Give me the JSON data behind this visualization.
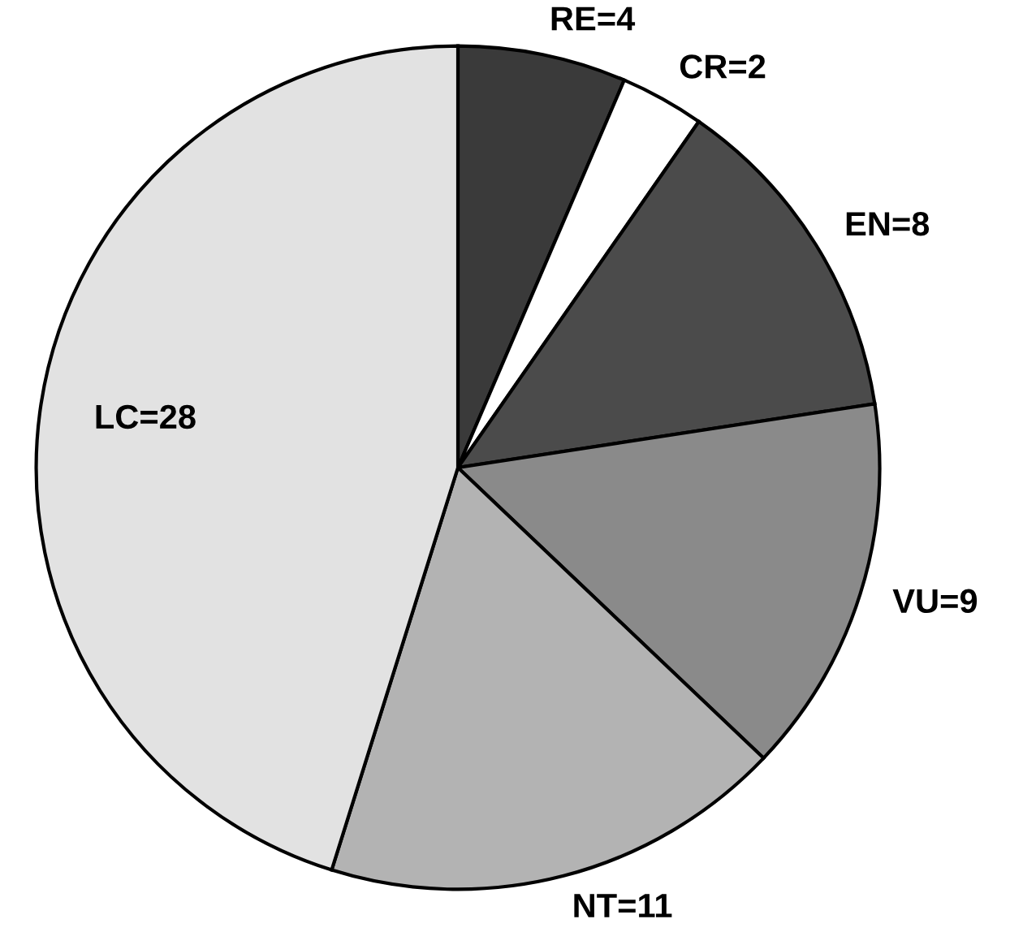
{
  "chart_data": {
    "type": "pie",
    "categories": [
      "RE=4",
      "CR=2",
      "EN=8",
      "VU=9",
      "NT=11",
      "LC=28"
    ],
    "values": [
      4,
      2,
      8,
      9,
      11,
      28
    ],
    "colors": [
      "#3a3a3a",
      "#ffffff",
      "#4b4b4b",
      "#8a8a8a",
      "#b3b3b3",
      "#e2e2e2"
    ]
  }
}
